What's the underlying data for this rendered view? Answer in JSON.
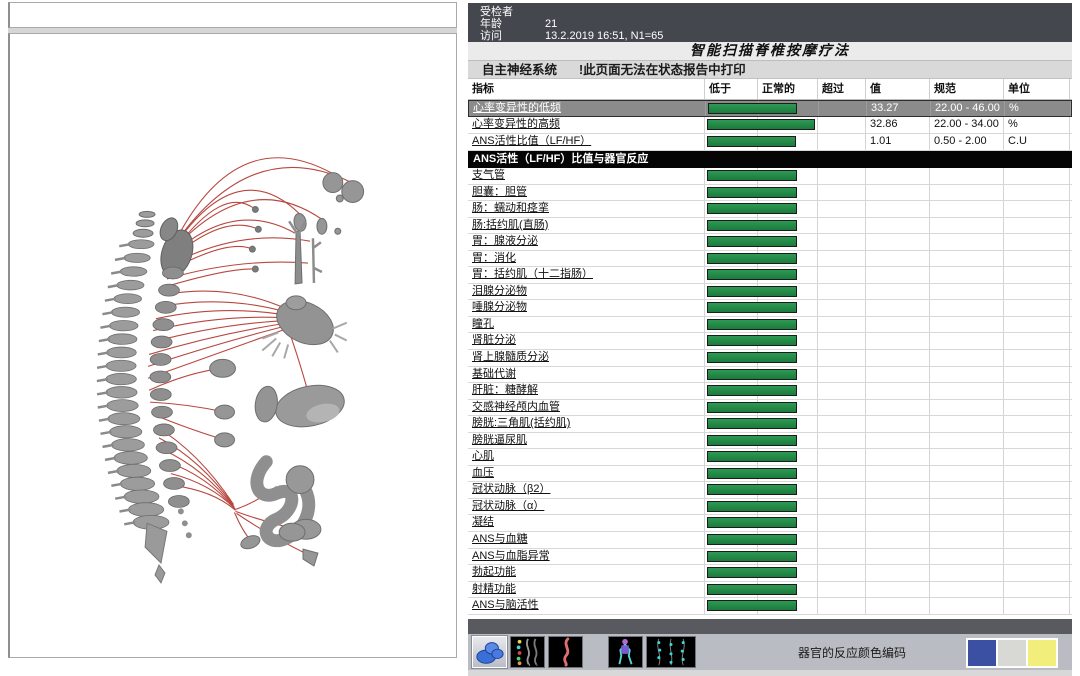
{
  "patient": {
    "fields": [
      {
        "label": "受检者",
        "value": ""
      },
      {
        "label": "年龄",
        "value": "21"
      },
      {
        "label": "访问",
        "value": "13.2.2019 16:51, N1=65"
      }
    ]
  },
  "title": "智能扫描脊椎按摩疗法",
  "section": {
    "name": "自主神经系统",
    "warning": "!此页面无法在状态报告中打印"
  },
  "table": {
    "headers": [
      "指标",
      "低于",
      "正常的",
      "超过",
      "值",
      "规范",
      "单位"
    ],
    "hrv_rows": [
      {
        "label": "心率变异性的低频",
        "value": "33.27",
        "norm": "22.00 - 46.00",
        "unit": "%",
        "bar_len": 89,
        "selected": true
      },
      {
        "label": "心率变异性的高频",
        "value": "32.86",
        "norm": "22.00 - 34.00",
        "unit": "%",
        "bar_len": 108,
        "selected": false
      },
      {
        "label": "ANS活性比值（LF/HF）",
        "value": "1.01",
        "norm": "0.50 - 2.00",
        "unit": "C.U",
        "bar_len": 89,
        "selected": false
      }
    ],
    "group_header": "ANS活性（LF/HF）比值与器官反应",
    "organ_bar_len": 90,
    "organ_rows": [
      "支气管",
      "胆囊：胆管",
      "肠：蠕动和痉挛",
      "肠:括约肌(直肠)",
      "胃：腺液分泌",
      "胃：消化",
      "胃：括约肌（十二指肠）",
      "泪腺分泌物",
      "唾腺分泌物",
      "瞳孔",
      "肾脏分泌",
      "肾上腺髓质分泌",
      "基础代谢",
      "肝脏：糖酵解",
      "交感神经颅内血管",
      "膀胱:三角肌(括约肌)",
      "膀胱逼尿肌",
      "心肌",
      "血压",
      "冠状动脉（β2）",
      "冠状动脉（α）",
      "凝结",
      "ANS与血糖",
      "ANS与血脂异常",
      "勃起功能",
      "射精功能",
      "ANS与脑活性"
    ]
  },
  "footer": {
    "legend_label": "器官的反应颜色编码",
    "thumbnails": [
      {
        "name": "organs-3d",
        "selected": true
      },
      {
        "name": "spine-segments",
        "selected": false
      },
      {
        "name": "spine-curve",
        "selected": false
      },
      {
        "name": "body-figure",
        "selected": false
      },
      {
        "name": "nerve-map",
        "selected": false
      }
    ],
    "swatches": [
      {
        "name": "blue",
        "color": "#3B50A2"
      },
      {
        "name": "gray",
        "color": "#D8D8D5"
      },
      {
        "name": "yellow",
        "color": "#F2EE7B"
      }
    ]
  },
  "colors": {
    "bar_green": "#1F8443",
    "selected_row": "#8B8B8B",
    "header_dark": "#45474E"
  }
}
